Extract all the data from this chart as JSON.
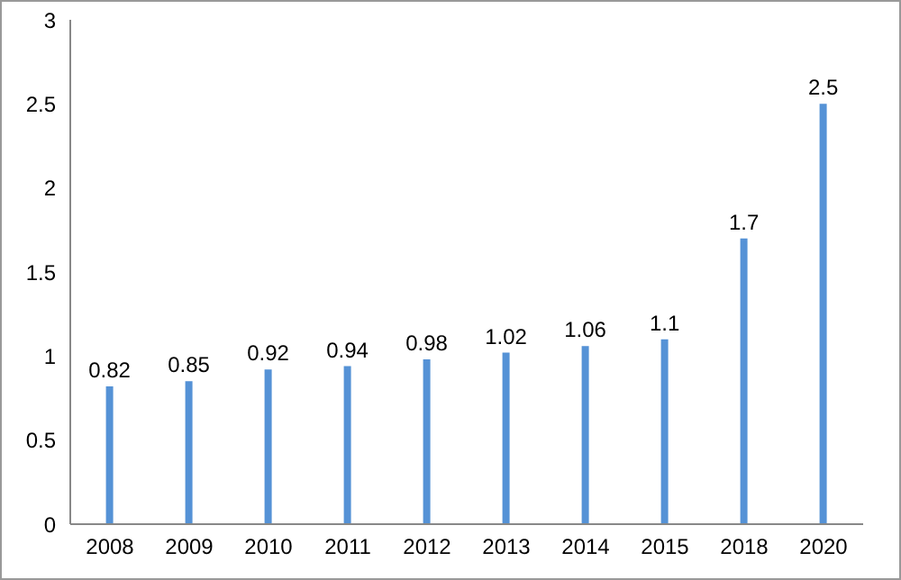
{
  "chart_data": {
    "type": "bar",
    "categories": [
      "2008",
      "2009",
      "2010",
      "2011",
      "2012",
      "2013",
      "2014",
      "2015",
      "2018",
      "2020"
    ],
    "values": [
      0.82,
      0.85,
      0.92,
      0.94,
      0.98,
      1.02,
      1.06,
      1.1,
      1.7,
      2.5
    ],
    "color": "#5592d6",
    "ylim": [
      0,
      3
    ],
    "yticks": [
      0,
      0.5,
      1,
      1.5,
      2,
      2.5,
      3
    ],
    "grid": false,
    "data_labels": true
  }
}
